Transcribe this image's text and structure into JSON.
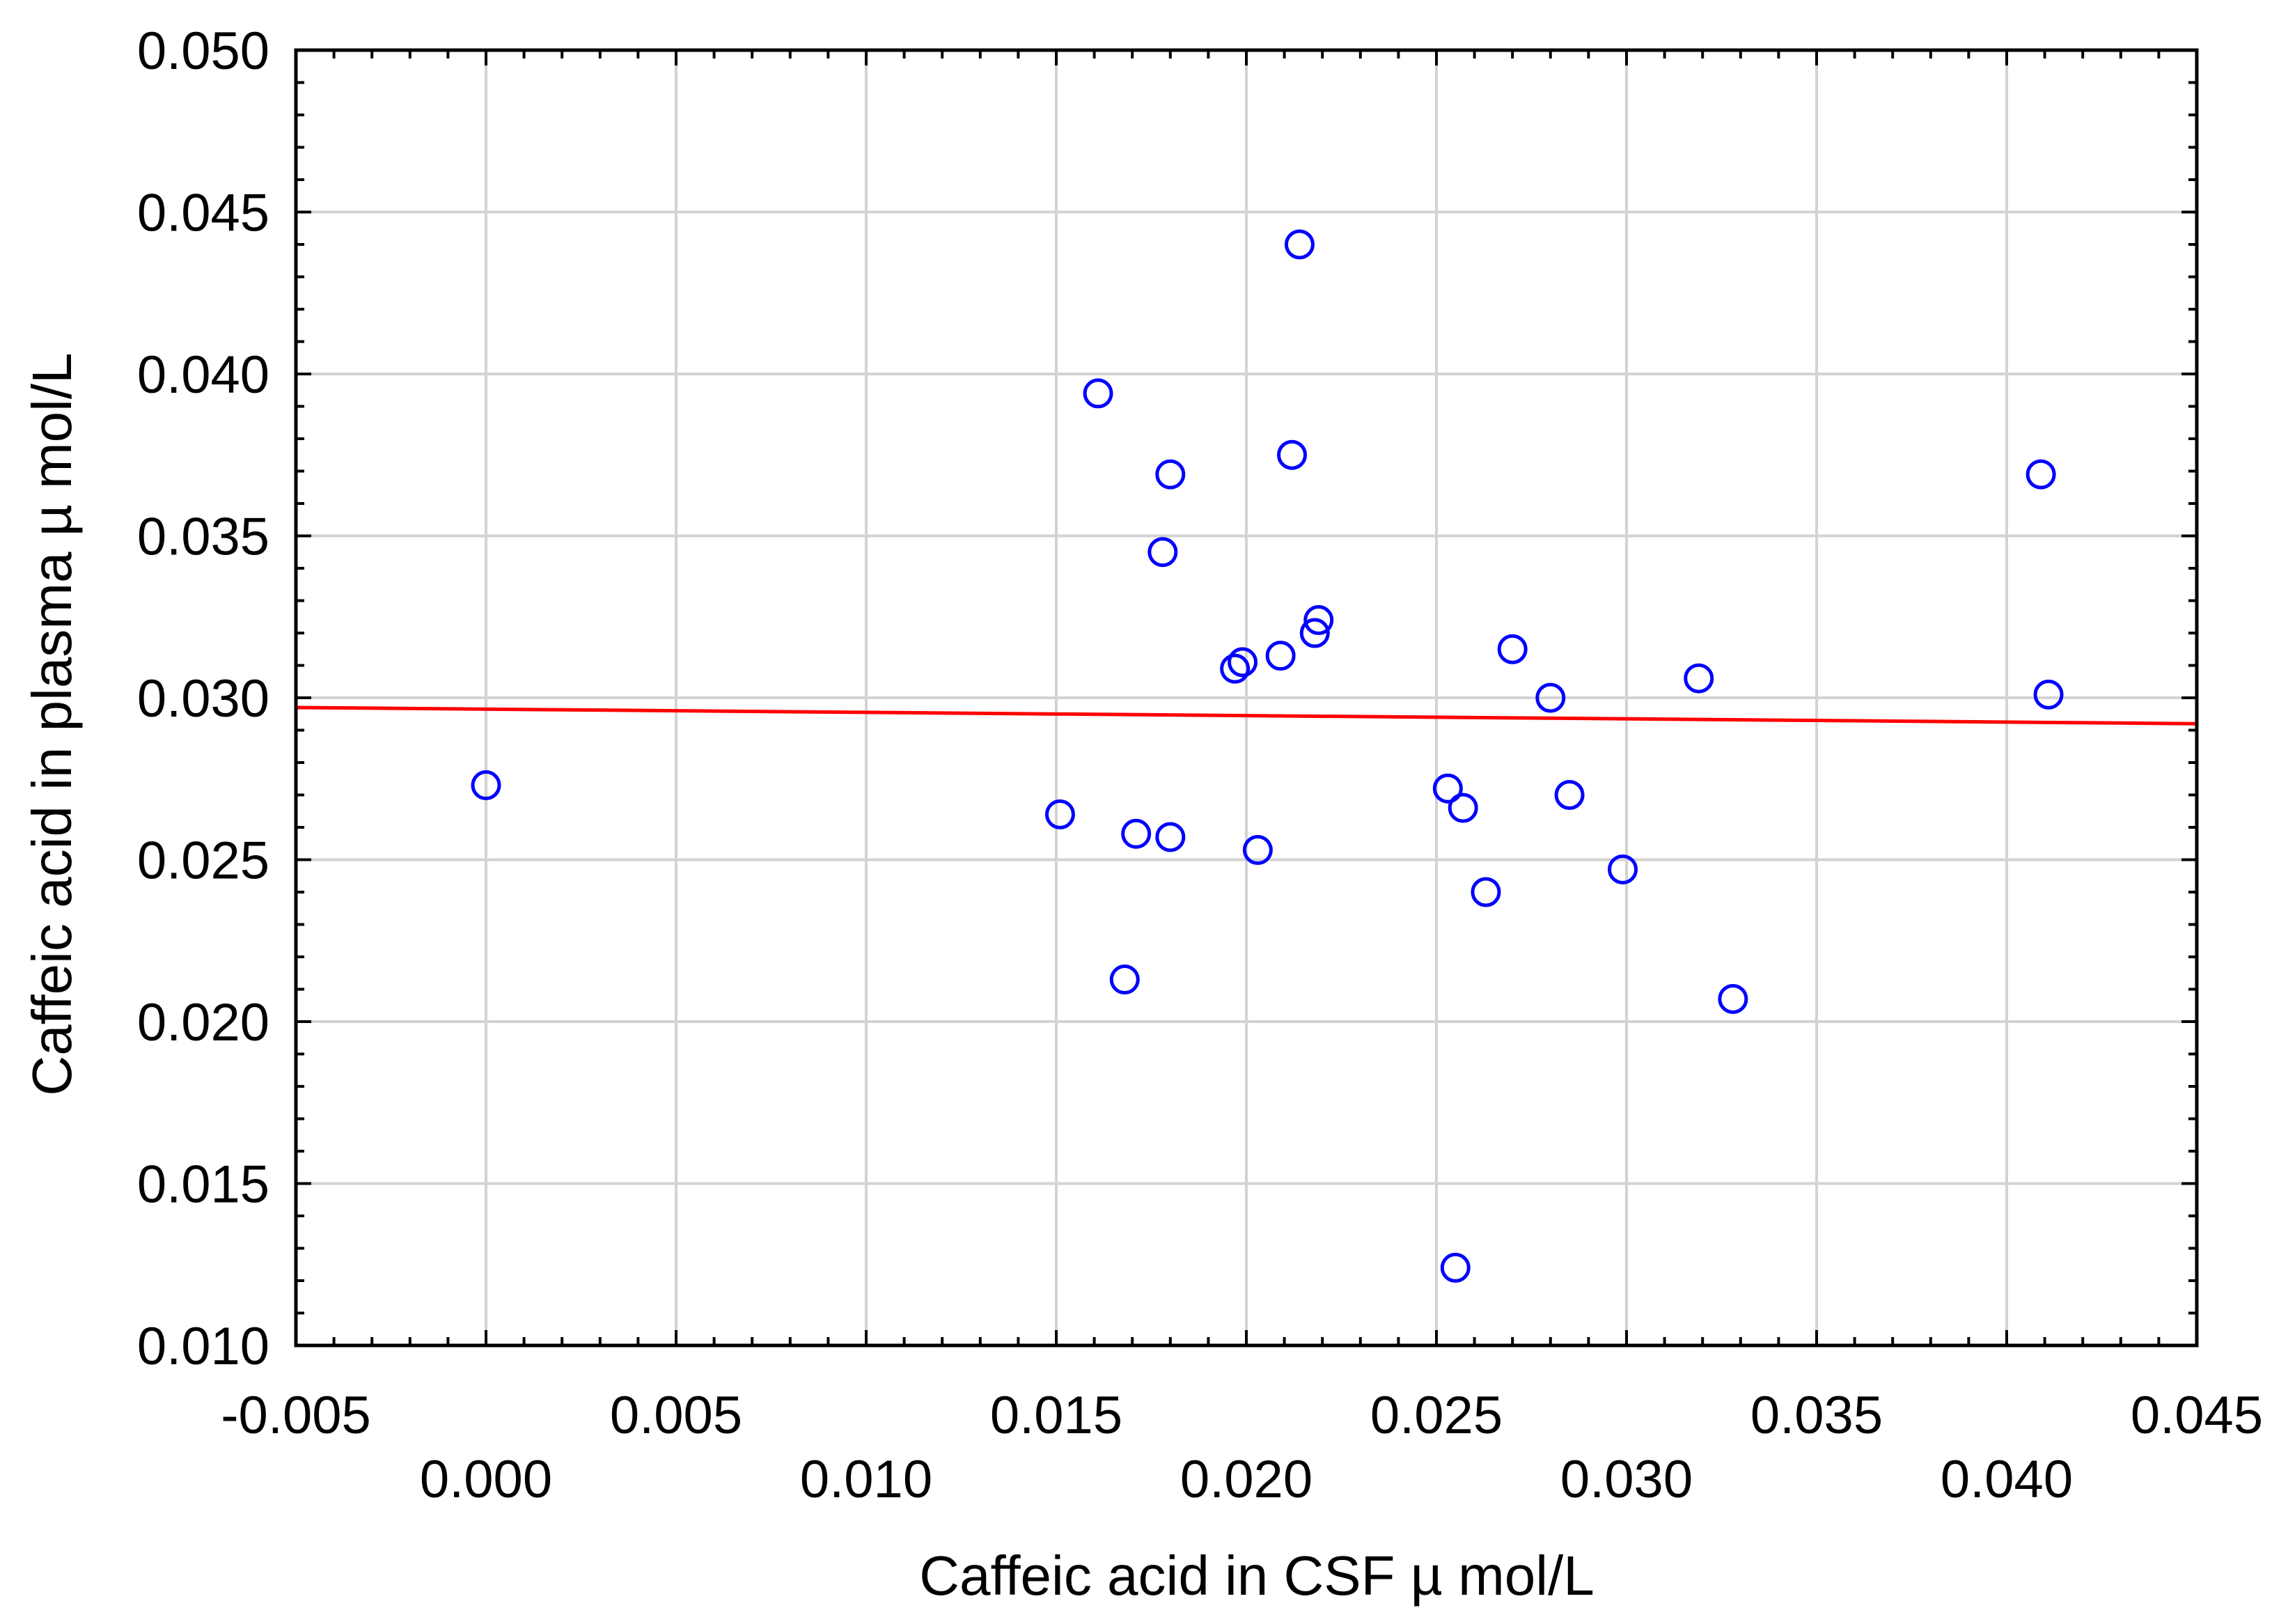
{
  "chart_data": {
    "type": "scatter",
    "xlabel": "Caffeic acid in CSF µ mol/L",
    "ylabel": "Caffeic acid in plasma µ mol/L",
    "xlim": [
      -0.005,
      0.045
    ],
    "ylim": [
      0.01,
      0.05
    ],
    "grid": true,
    "x_ticks_upper": [
      "-0.005",
      "0.005",
      "0.015",
      "0.025",
      "0.035",
      "0.045"
    ],
    "x_ticks_lower": [
      "0.000",
      "0.010",
      "0.020",
      "0.030",
      "0.040"
    ],
    "y_ticks": [
      "0.010",
      "0.015",
      "0.020",
      "0.025",
      "0.030",
      "0.035",
      "0.040",
      "0.045",
      "0.050"
    ],
    "x_tick_values_upper": [
      -0.005,
      0.005,
      0.015,
      0.025,
      0.035,
      0.045
    ],
    "x_tick_values_lower": [
      0.0,
      0.01,
      0.02,
      0.03,
      0.04
    ],
    "y_tick_values": [
      0.01,
      0.015,
      0.02,
      0.025,
      0.03,
      0.035,
      0.04,
      0.045,
      0.05
    ],
    "points": [
      {
        "x": 0.0,
        "y": 0.0273
      },
      {
        "x": 0.0151,
        "y": 0.0264
      },
      {
        "x": 0.0161,
        "y": 0.0394
      },
      {
        "x": 0.0168,
        "y": 0.0213
      },
      {
        "x": 0.0171,
        "y": 0.0258
      },
      {
        "x": 0.0178,
        "y": 0.0345
      },
      {
        "x": 0.018,
        "y": 0.0369
      },
      {
        "x": 0.018,
        "y": 0.0257
      },
      {
        "x": 0.0197,
        "y": 0.0309
      },
      {
        "x": 0.0199,
        "y": 0.0311
      },
      {
        "x": 0.0203,
        "y": 0.0253
      },
      {
        "x": 0.0209,
        "y": 0.0313
      },
      {
        "x": 0.0212,
        "y": 0.0375
      },
      {
        "x": 0.0214,
        "y": 0.044
      },
      {
        "x": 0.0218,
        "y": 0.032
      },
      {
        "x": 0.0219,
        "y": 0.0324
      },
      {
        "x": 0.0253,
        "y": 0.0272
      },
      {
        "x": 0.0255,
        "y": 0.0124
      },
      {
        "x": 0.0257,
        "y": 0.0266
      },
      {
        "x": 0.0263,
        "y": 0.024
      },
      {
        "x": 0.027,
        "y": 0.0315
      },
      {
        "x": 0.028,
        "y": 0.03
      },
      {
        "x": 0.0285,
        "y": 0.027
      },
      {
        "x": 0.0299,
        "y": 0.0247
      },
      {
        "x": 0.0319,
        "y": 0.0306
      },
      {
        "x": 0.0328,
        "y": 0.0207
      },
      {
        "x": 0.0409,
        "y": 0.0369
      },
      {
        "x": 0.0411,
        "y": 0.0301
      }
    ],
    "trend_line": {
      "x": [
        -0.005,
        0.045
      ],
      "y": [
        0.0297,
        0.0292
      ]
    },
    "colors": {
      "points": "#0000ff",
      "trend_line": "#ff0000",
      "grid": "#d3d3d3",
      "axes": "#000000"
    }
  }
}
